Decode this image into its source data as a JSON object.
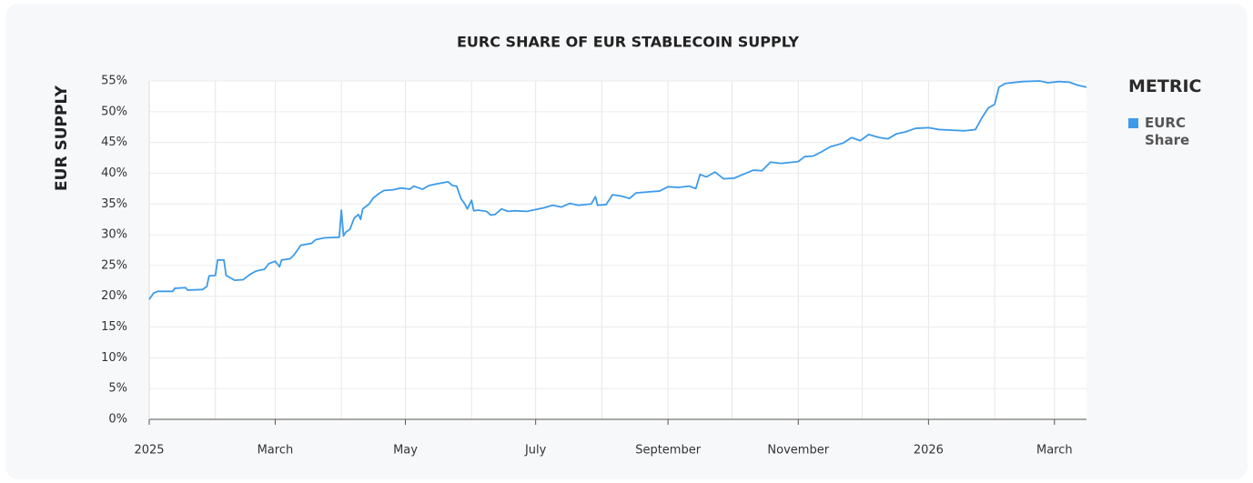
{
  "chart_data": {
    "type": "line",
    "title": "EURC SHARE OF EUR STABLECOIN SUPPLY",
    "y_label": "EUR SUPPLY",
    "legend_title": "METRIC",
    "legend_position": "right",
    "grid": true,
    "ylim": [
      0,
      55
    ],
    "yticks": [
      {
        "value": 0,
        "label": "0%"
      },
      {
        "value": 5,
        "label": "5%"
      },
      {
        "value": 10,
        "label": "10%"
      },
      {
        "value": 15,
        "label": "15%"
      },
      {
        "value": 20,
        "label": "20%"
      },
      {
        "value": 25,
        "label": "25%"
      },
      {
        "value": 30,
        "label": "30%"
      },
      {
        "value": 35,
        "label": "35%"
      },
      {
        "value": 40,
        "label": "40%"
      },
      {
        "value": 45,
        "label": "45%"
      },
      {
        "value": 50,
        "label": "50%"
      },
      {
        "value": 55,
        "label": "55%"
      }
    ],
    "xlim": [
      "2025-01-01",
      "2026-03-16"
    ],
    "xticks": [
      {
        "value": "2025-01-01",
        "label": "2025"
      },
      {
        "value": "2025-03-01",
        "label": "March"
      },
      {
        "value": "2025-05-01",
        "label": "May"
      },
      {
        "value": "2025-07-01",
        "label": "July"
      },
      {
        "value": "2025-09-01",
        "label": "September"
      },
      {
        "value": "2025-11-01",
        "label": "November"
      },
      {
        "value": "2026-01-01",
        "label": "2026"
      },
      {
        "value": "2026-03-01",
        "label": "March"
      }
    ],
    "xgrid": [
      "2025-01-01",
      "2025-02-01",
      "2025-03-01",
      "2025-04-01",
      "2025-05-01",
      "2025-06-01",
      "2025-07-01",
      "2025-08-01",
      "2025-09-01",
      "2025-10-01",
      "2025-11-01",
      "2025-12-01",
      "2026-01-01",
      "2026-02-01",
      "2026-03-01"
    ],
    "x": [
      "2025-01-01",
      "2025-01-03",
      "2025-01-05",
      "2025-01-12",
      "2025-01-13",
      "2025-01-18",
      "2025-01-19",
      "2025-01-26",
      "2025-01-28",
      "2025-01-29",
      "2025-02-01",
      "2025-02-02",
      "2025-02-05",
      "2025-02-06",
      "2025-02-10",
      "2025-02-14",
      "2025-02-17",
      "2025-02-20",
      "2025-02-24",
      "2025-02-26",
      "2025-03-01",
      "2025-03-03",
      "2025-03-04",
      "2025-03-08",
      "2025-03-10",
      "2025-03-13",
      "2025-03-18",
      "2025-03-20",
      "2025-03-24",
      "2025-03-31",
      "2025-04-01",
      "2025-04-02",
      "2025-04-03",
      "2025-04-05",
      "2025-04-07",
      "2025-04-09",
      "2025-04-10",
      "2025-04-11",
      "2025-04-14",
      "2025-04-16",
      "2025-04-19",
      "2025-04-21",
      "2025-04-25",
      "2025-04-29",
      "2025-05-03",
      "2025-05-05",
      "2025-05-09",
      "2025-05-12",
      "2025-05-16",
      "2025-05-21",
      "2025-05-23",
      "2025-05-25",
      "2025-05-27",
      "2025-05-29",
      "2025-05-30",
      "2025-06-01",
      "2025-06-02",
      "2025-06-04",
      "2025-06-08",
      "2025-06-10",
      "2025-06-12",
      "2025-06-15",
      "2025-06-18",
      "2025-06-21",
      "2025-06-27",
      "2025-07-01",
      "2025-07-05",
      "2025-07-09",
      "2025-07-13",
      "2025-07-17",
      "2025-07-21",
      "2025-07-27",
      "2025-07-29",
      "2025-07-30",
      "2025-08-03",
      "2025-08-06",
      "2025-08-10",
      "2025-08-14",
      "2025-08-17",
      "2025-08-24",
      "2025-08-28",
      "2025-09-01",
      "2025-09-06",
      "2025-09-11",
      "2025-09-14",
      "2025-09-16",
      "2025-09-19",
      "2025-09-23",
      "2025-09-27",
      "2025-10-02",
      "2025-10-06",
      "2025-10-11",
      "2025-10-15",
      "2025-10-19",
      "2025-10-24",
      "2025-11-01",
      "2025-11-04",
      "2025-11-08",
      "2025-11-12",
      "2025-11-16",
      "2025-11-22",
      "2025-11-26",
      "2025-11-30",
      "2025-12-04",
      "2025-12-09",
      "2025-12-13",
      "2025-12-17",
      "2025-12-21",
      "2025-12-26",
      "2026-01-01",
      "2026-01-06",
      "2026-01-12",
      "2026-01-18",
      "2026-01-23",
      "2026-01-26",
      "2026-01-29",
      "2026-02-01",
      "2026-02-03",
      "2026-02-06",
      "2026-02-14",
      "2026-02-22",
      "2026-02-26",
      "2026-03-03",
      "2026-03-08",
      "2026-03-12",
      "2026-03-16"
    ],
    "series": [
      {
        "name": "EURC Share",
        "color": "#3d9be9",
        "values": [
          19.5,
          20.5,
          20.8,
          20.8,
          21.3,
          21.4,
          21.0,
          21.1,
          21.6,
          23.3,
          23.4,
          25.9,
          25.9,
          23.4,
          22.6,
          22.7,
          23.5,
          24.1,
          24.4,
          25.3,
          25.7,
          24.8,
          25.9,
          26.1,
          26.8,
          28.3,
          28.6,
          29.2,
          29.5,
          29.6,
          34.0,
          29.8,
          30.4,
          30.9,
          32.7,
          33.3,
          32.5,
          34.2,
          35.0,
          36.0,
          36.8,
          37.2,
          37.3,
          37.6,
          37.4,
          37.9,
          37.4,
          38.0,
          38.3,
          38.6,
          38.0,
          37.9,
          35.9,
          34.9,
          34.2,
          35.6,
          33.9,
          34.0,
          33.8,
          33.2,
          33.3,
          34.2,
          33.8,
          33.9,
          33.8,
          34.1,
          34.4,
          34.8,
          34.5,
          35.1,
          34.8,
          35.0,
          36.2,
          34.8,
          34.9,
          36.5,
          36.3,
          35.9,
          36.8,
          37.0,
          37.1,
          37.8,
          37.7,
          37.9,
          37.5,
          39.8,
          39.4,
          40.2,
          39.1,
          39.2,
          39.8,
          40.5,
          40.4,
          41.8,
          41.6,
          41.9,
          42.7,
          42.8,
          43.5,
          44.3,
          44.9,
          45.8,
          45.3,
          46.3,
          45.8,
          45.6,
          46.4,
          46.7,
          47.3,
          47.4,
          47.1,
          47.0,
          46.9,
          47.1,
          49.0,
          50.6,
          51.2,
          54.0,
          54.6,
          54.9,
          55.0,
          54.7,
          54.9,
          54.8,
          54.3,
          54.0
        ]
      }
    ]
  }
}
